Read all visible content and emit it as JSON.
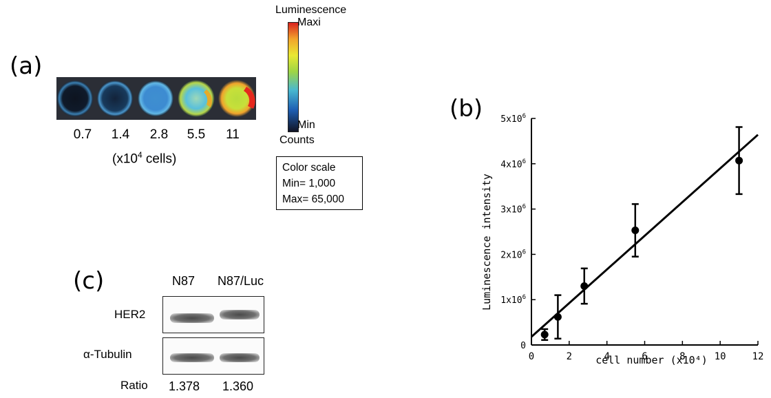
{
  "panels": {
    "a": "(a)",
    "b": "(b)",
    "c": "(c)"
  },
  "wells": {
    "labels": [
      "0.7",
      "1.4",
      "2.8",
      "5.5",
      "11"
    ],
    "unit_prefix": "(x10",
    "unit_exp": "4",
    "unit_suffix": " cells)"
  },
  "colorbar": {
    "title": "Luminescence",
    "max_label": "Maxi",
    "min_label": "Min",
    "counts_label": "Counts",
    "scale_title": "Color scale",
    "scale_min": "Min= 1,000",
    "scale_max": "Max= 65,000"
  },
  "blot": {
    "columns": [
      "N87",
      "N87/Luc"
    ],
    "rows": [
      "HER2",
      "α-Tubulin"
    ],
    "ratio_label": "Ratio",
    "ratios": [
      "1.378",
      "1.360"
    ]
  },
  "chart_data": {
    "type": "scatter",
    "xlabel": "cell number (x10⁴)",
    "ylabel": "Luminescence intensity",
    "xlim": [
      0,
      12
    ],
    "ylim": [
      0,
      5000000
    ],
    "xticks": [
      "0",
      "2",
      "4",
      "6",
      "8",
      "10",
      "12"
    ],
    "yticks": [
      {
        "value": 0,
        "base": "0",
        "exp": ""
      },
      {
        "value": 1000000,
        "base": "1x10",
        "exp": "6"
      },
      {
        "value": 2000000,
        "base": "2x10",
        "exp": "6"
      },
      {
        "value": 3000000,
        "base": "3x10",
        "exp": "6"
      },
      {
        "value": 4000000,
        "base": "4x10",
        "exp": "6"
      },
      {
        "value": 5000000,
        "base": "5x10",
        "exp": "6"
      }
    ],
    "series": [
      {
        "points": [
          {
            "x": 0.7,
            "y": 230000,
            "err": 120000
          },
          {
            "x": 1.4,
            "y": 620000,
            "err": 480000
          },
          {
            "x": 2.8,
            "y": 1300000,
            "err": 390000
          },
          {
            "x": 5.5,
            "y": 2530000,
            "err": 580000
          },
          {
            "x": 11,
            "y": 4070000,
            "err": 740000
          }
        ]
      }
    ],
    "fit_line": {
      "x": [
        0,
        12
      ],
      "y": [
        180000,
        4640000
      ]
    },
    "grid": false
  }
}
